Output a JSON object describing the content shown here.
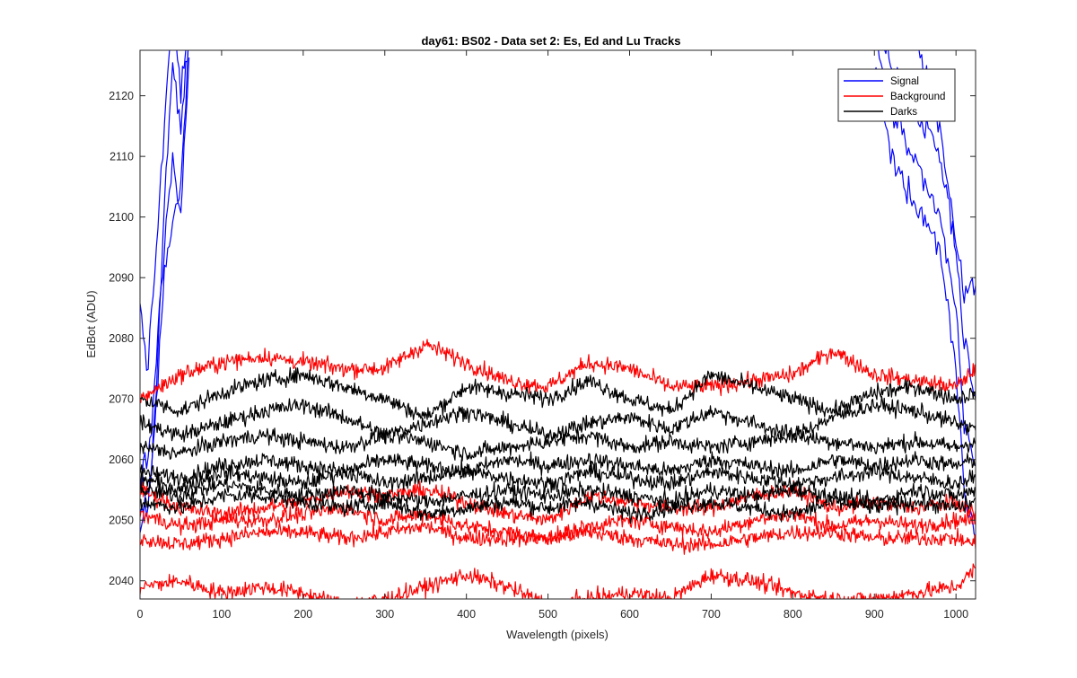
{
  "chart_data": {
    "type": "line",
    "title": "day61: BS02 - Data set 2: Es, Ed and Lu Tracks",
    "xlabel": "Wavelength (pixels)",
    "ylabel": "EdBot (ADU)",
    "xlim": [
      0,
      1024
    ],
    "ylim": [
      2037,
      2127.5
    ],
    "xticks": [
      0,
      100,
      200,
      300,
      400,
      500,
      600,
      700,
      800,
      900,
      1000
    ],
    "yticks": [
      2040,
      2050,
      2060,
      2070,
      2080,
      2090,
      2100,
      2110,
      2120
    ],
    "grid": false,
    "legend_position": "top-right",
    "legend": [
      {
        "name": "Signal",
        "color": "#0000ff"
      },
      {
        "name": "Background",
        "color": "#ff0000"
      },
      {
        "name": "Darks",
        "color": "#000000"
      }
    ],
    "series": [
      {
        "group": "Signal",
        "color": "#0000ff",
        "x": [
          0,
          10,
          20,
          30,
          40,
          50,
          60,
          900,
          920,
          940,
          960,
          980,
          1000,
          1010,
          1024
        ],
        "values": [
          2085,
          2075,
          2095,
          2115,
          2135,
          2120,
          2135,
          2125,
          2110,
          2105,
          2100,
          2095,
          2075,
          2055,
          2048
        ]
      },
      {
        "group": "Signal",
        "color": "#0000ff",
        "x": [
          0,
          10,
          20,
          30,
          40,
          50,
          60,
          900,
          920,
          940,
          960,
          980,
          1000,
          1010,
          1024
        ],
        "values": [
          2058,
          2060,
          2078,
          2095,
          2110,
          2100,
          2125,
          2130,
          2118,
          2112,
          2105,
          2100,
          2085,
          2065,
          2060
        ]
      },
      {
        "group": "Signal",
        "color": "#0000ff",
        "x": [
          0,
          10,
          20,
          30,
          40,
          50,
          60,
          900,
          920,
          940,
          960,
          980,
          1000,
          1010,
          1024
        ],
        "values": [
          2050,
          2055,
          2068,
          2090,
          2100,
          2105,
          2130,
          2135,
          2125,
          2120,
          2115,
          2110,
          2095,
          2080,
          2070
        ]
      },
      {
        "group": "Signal",
        "color": "#0000ff",
        "x": [
          0,
          10,
          20,
          30,
          40,
          50,
          60,
          950,
          980,
          1000,
          1010,
          1024
        ],
        "values": [
          2048,
          2052,
          2072,
          2102,
          2125,
          2115,
          2130,
          2130,
          2115,
          2095,
          2087,
          2089
        ]
      },
      {
        "group": "Background",
        "color": "#ff0000",
        "x": [
          0,
          50,
          100,
          150,
          200,
          250,
          300,
          350,
          400,
          450,
          500,
          550,
          600,
          650,
          700,
          750,
          800,
          850,
          900,
          950,
          1000,
          1024
        ],
        "values": [
          2070,
          2074,
          2076,
          2077,
          2076,
          2075,
          2075,
          2079,
          2076,
          2073,
          2072,
          2076,
          2075,
          2072,
          2072,
          2073,
          2074,
          2078,
          2074,
          2073,
          2072,
          2075
        ]
      },
      {
        "group": "Background",
        "color": "#ff0000",
        "x": [
          0,
          50,
          100,
          150,
          200,
          250,
          300,
          350,
          400,
          450,
          500,
          550,
          600,
          650,
          700,
          750,
          800,
          850,
          900,
          950,
          1000,
          1024
        ],
        "values": [
          2055,
          2052,
          2051,
          2052,
          2053,
          2055,
          2054,
          2055,
          2053,
          2051,
          2050,
          2054,
          2053,
          2052,
          2052,
          2054,
          2055,
          2052,
          2053,
          2052,
          2053,
          2051
        ]
      },
      {
        "group": "Background",
        "color": "#ff0000",
        "x": [
          0,
          50,
          100,
          150,
          200,
          250,
          300,
          350,
          400,
          450,
          500,
          550,
          600,
          650,
          700,
          750,
          800,
          850,
          900,
          950,
          1000,
          1024
        ],
        "values": [
          2051,
          2049,
          2050,
          2050,
          2051,
          2052,
          2050,
          2051,
          2049,
          2048,
          2047,
          2049,
          2050,
          2049,
          2048,
          2050,
          2051,
          2049,
          2050,
          2049,
          2050,
          2050
        ]
      },
      {
        "group": "Background",
        "color": "#ff0000",
        "x": [
          0,
          50,
          100,
          150,
          200,
          250,
          300,
          350,
          400,
          450,
          500,
          550,
          600,
          650,
          700,
          750,
          800,
          850,
          900,
          950,
          1000,
          1024
        ],
        "values": [
          2047,
          2046,
          2047,
          2048,
          2048,
          2047,
          2048,
          2049,
          2047,
          2047,
          2047,
          2048,
          2047,
          2046,
          2046,
          2047,
          2048,
          2048,
          2047,
          2047,
          2047,
          2046
        ]
      },
      {
        "group": "Background",
        "color": "#ff0000",
        "x": [
          0,
          50,
          100,
          150,
          200,
          250,
          300,
          350,
          400,
          450,
          500,
          550,
          600,
          650,
          700,
          750,
          800,
          850,
          900,
          950,
          1000,
          1024
        ],
        "values": [
          2039,
          2040,
          2038,
          2039,
          2038,
          2036,
          2037,
          2039,
          2041,
          2039,
          2036,
          2037,
          2038,
          2037,
          2041,
          2040,
          2038,
          2037,
          2037,
          2038,
          2039,
          2042
        ]
      },
      {
        "group": "Darks",
        "color": "#000000",
        "x": [
          0,
          50,
          100,
          150,
          200,
          250,
          300,
          350,
          400,
          450,
          500,
          550,
          600,
          650,
          700,
          750,
          800,
          850,
          900,
          950,
          1000,
          1024
        ],
        "values": [
          2070,
          2068,
          2071,
          2073,
          2074,
          2072,
          2070,
          2067,
          2072,
          2071,
          2070,
          2073,
          2070,
          2068,
          2074,
          2072,
          2070,
          2068,
          2071,
          2072,
          2070,
          2071
        ]
      },
      {
        "group": "Darks",
        "color": "#000000",
        "x": [
          0,
          50,
          100,
          150,
          200,
          250,
          300,
          350,
          400,
          450,
          500,
          550,
          600,
          650,
          700,
          750,
          800,
          850,
          900,
          950,
          1000,
          1024
        ],
        "values": [
          2066,
          2064,
          2066,
          2068,
          2069,
          2067,
          2064,
          2066,
          2068,
          2066,
          2064,
          2066,
          2067,
          2065,
          2068,
          2066,
          2064,
          2067,
          2069,
          2068,
          2066,
          2065
        ]
      },
      {
        "group": "Darks",
        "color": "#000000",
        "x": [
          0,
          50,
          100,
          150,
          200,
          250,
          300,
          350,
          400,
          450,
          500,
          550,
          600,
          650,
          700,
          750,
          800,
          850,
          900,
          950,
          1000,
          1024
        ],
        "values": [
          2062,
          2061,
          2063,
          2064,
          2063,
          2062,
          2064,
          2063,
          2061,
          2062,
          2063,
          2064,
          2062,
          2063,
          2062,
          2063,
          2064,
          2063,
          2062,
          2063,
          2062,
          2063
        ]
      },
      {
        "group": "Darks",
        "color": "#000000",
        "x": [
          0,
          50,
          100,
          150,
          200,
          250,
          300,
          350,
          400,
          450,
          500,
          550,
          600,
          650,
          700,
          750,
          800,
          850,
          900,
          950,
          1000,
          1024
        ],
        "values": [
          2058,
          2057,
          2059,
          2060,
          2059,
          2058,
          2060,
          2059,
          2058,
          2060,
          2059,
          2060,
          2059,
          2058,
          2060,
          2059,
          2058,
          2060,
          2059,
          2060,
          2059,
          2060
        ]
      },
      {
        "group": "Darks",
        "color": "#000000",
        "x": [
          0,
          50,
          100,
          150,
          200,
          250,
          300,
          350,
          400,
          450,
          500,
          550,
          600,
          650,
          700,
          750,
          800,
          850,
          900,
          950,
          1000,
          1024
        ],
        "values": [
          2055,
          2054,
          2056,
          2055,
          2054,
          2055,
          2054,
          2053,
          2054,
          2055,
          2054,
          2055,
          2054,
          2053,
          2055,
          2054,
          2055,
          2054,
          2053,
          2055,
          2054,
          2055
        ]
      },
      {
        "group": "Darks",
        "color": "#000000",
        "x": [
          0,
          50,
          100,
          150,
          200,
          250,
          300,
          350,
          400,
          450,
          500,
          550,
          600,
          650,
          700,
          750,
          800,
          850,
          900,
          950,
          1000,
          1024
        ],
        "values": [
          2053,
          2052,
          2054,
          2054,
          2053,
          2052,
          2053,
          2051,
          2052,
          2053,
          2052,
          2053,
          2051,
          2052,
          2053,
          2052,
          2051,
          2053,
          2052,
          2053,
          2052,
          2053
        ]
      },
      {
        "group": "Darks",
        "color": "#000000",
        "x": [
          0,
          50,
          100,
          150,
          200,
          250,
          300,
          350,
          400,
          450,
          500,
          550,
          600,
          650,
          700,
          750,
          800,
          850,
          900,
          950,
          1000,
          1024
        ],
        "values": [
          2057,
          2055,
          2058,
          2057,
          2056,
          2058,
          2056,
          2057,
          2058,
          2057,
          2056,
          2058,
          2057,
          2056,
          2058,
          2057,
          2056,
          2057,
          2058,
          2057,
          2056,
          2057
        ]
      }
    ]
  }
}
